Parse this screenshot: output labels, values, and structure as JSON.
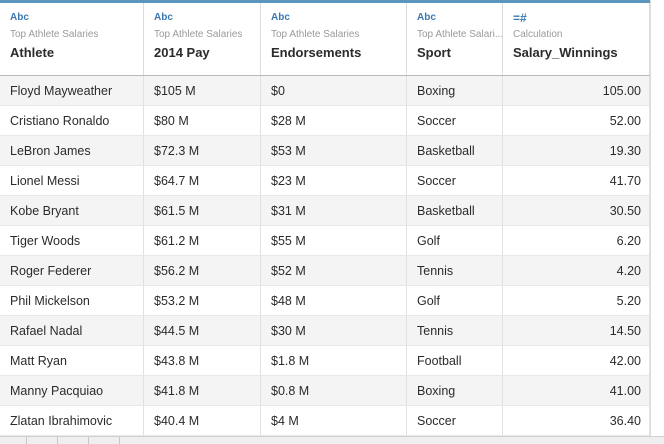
{
  "columns": [
    {
      "type": "Abc",
      "source": "Top Athlete Salaries",
      "name": "Athlete"
    },
    {
      "type": "Abc",
      "source": "Top Athlete Salaries",
      "name": "2014 Pay"
    },
    {
      "type": "Abc",
      "source": "Top Athlete Salaries",
      "name": "Endorsements"
    },
    {
      "type": "Abc",
      "source": "Top Athlete Salari...",
      "name": "Sport"
    },
    {
      "type": "=#",
      "source": "Calculation",
      "name": "Salary_Winnings"
    }
  ],
  "rows": [
    [
      "Floyd Mayweather",
      "$105 M",
      "$0",
      "Boxing",
      "105.00"
    ],
    [
      "Cristiano Ronaldo",
      "$80 M",
      "$28 M",
      "Soccer",
      "52.00"
    ],
    [
      "LeBron James",
      "$72.3 M",
      "$53 M",
      "Basketball",
      "19.30"
    ],
    [
      "Lionel Messi",
      "$64.7 M",
      "$23 M",
      "Soccer",
      "41.70"
    ],
    [
      "Kobe Bryant",
      "$61.5 M",
      "$31 M",
      "Basketball",
      "30.50"
    ],
    [
      "Tiger Woods",
      "$61.2 M",
      "$55 M",
      "Golf",
      "6.20"
    ],
    [
      "Roger Federer",
      "$56.2 M",
      "$52 M",
      "Tennis",
      "4.20"
    ],
    [
      "Phil Mickelson",
      "$53.2 M",
      "$48 M",
      "Golf",
      "5.20"
    ],
    [
      "Rafael Nadal",
      "$44.5 M",
      "$30 M",
      "Tennis",
      "14.50"
    ],
    [
      "Matt Ryan",
      "$43.8 M",
      "$1.8 M",
      "Football",
      "42.00"
    ],
    [
      "Manny Pacquiao",
      "$41.8 M",
      "$0.8 M",
      "Boxing",
      "41.00"
    ],
    [
      "Zlatan Ibrahimovic",
      "$40.4 M",
      "$4 M",
      "Soccer",
      "36.40"
    ]
  ]
}
